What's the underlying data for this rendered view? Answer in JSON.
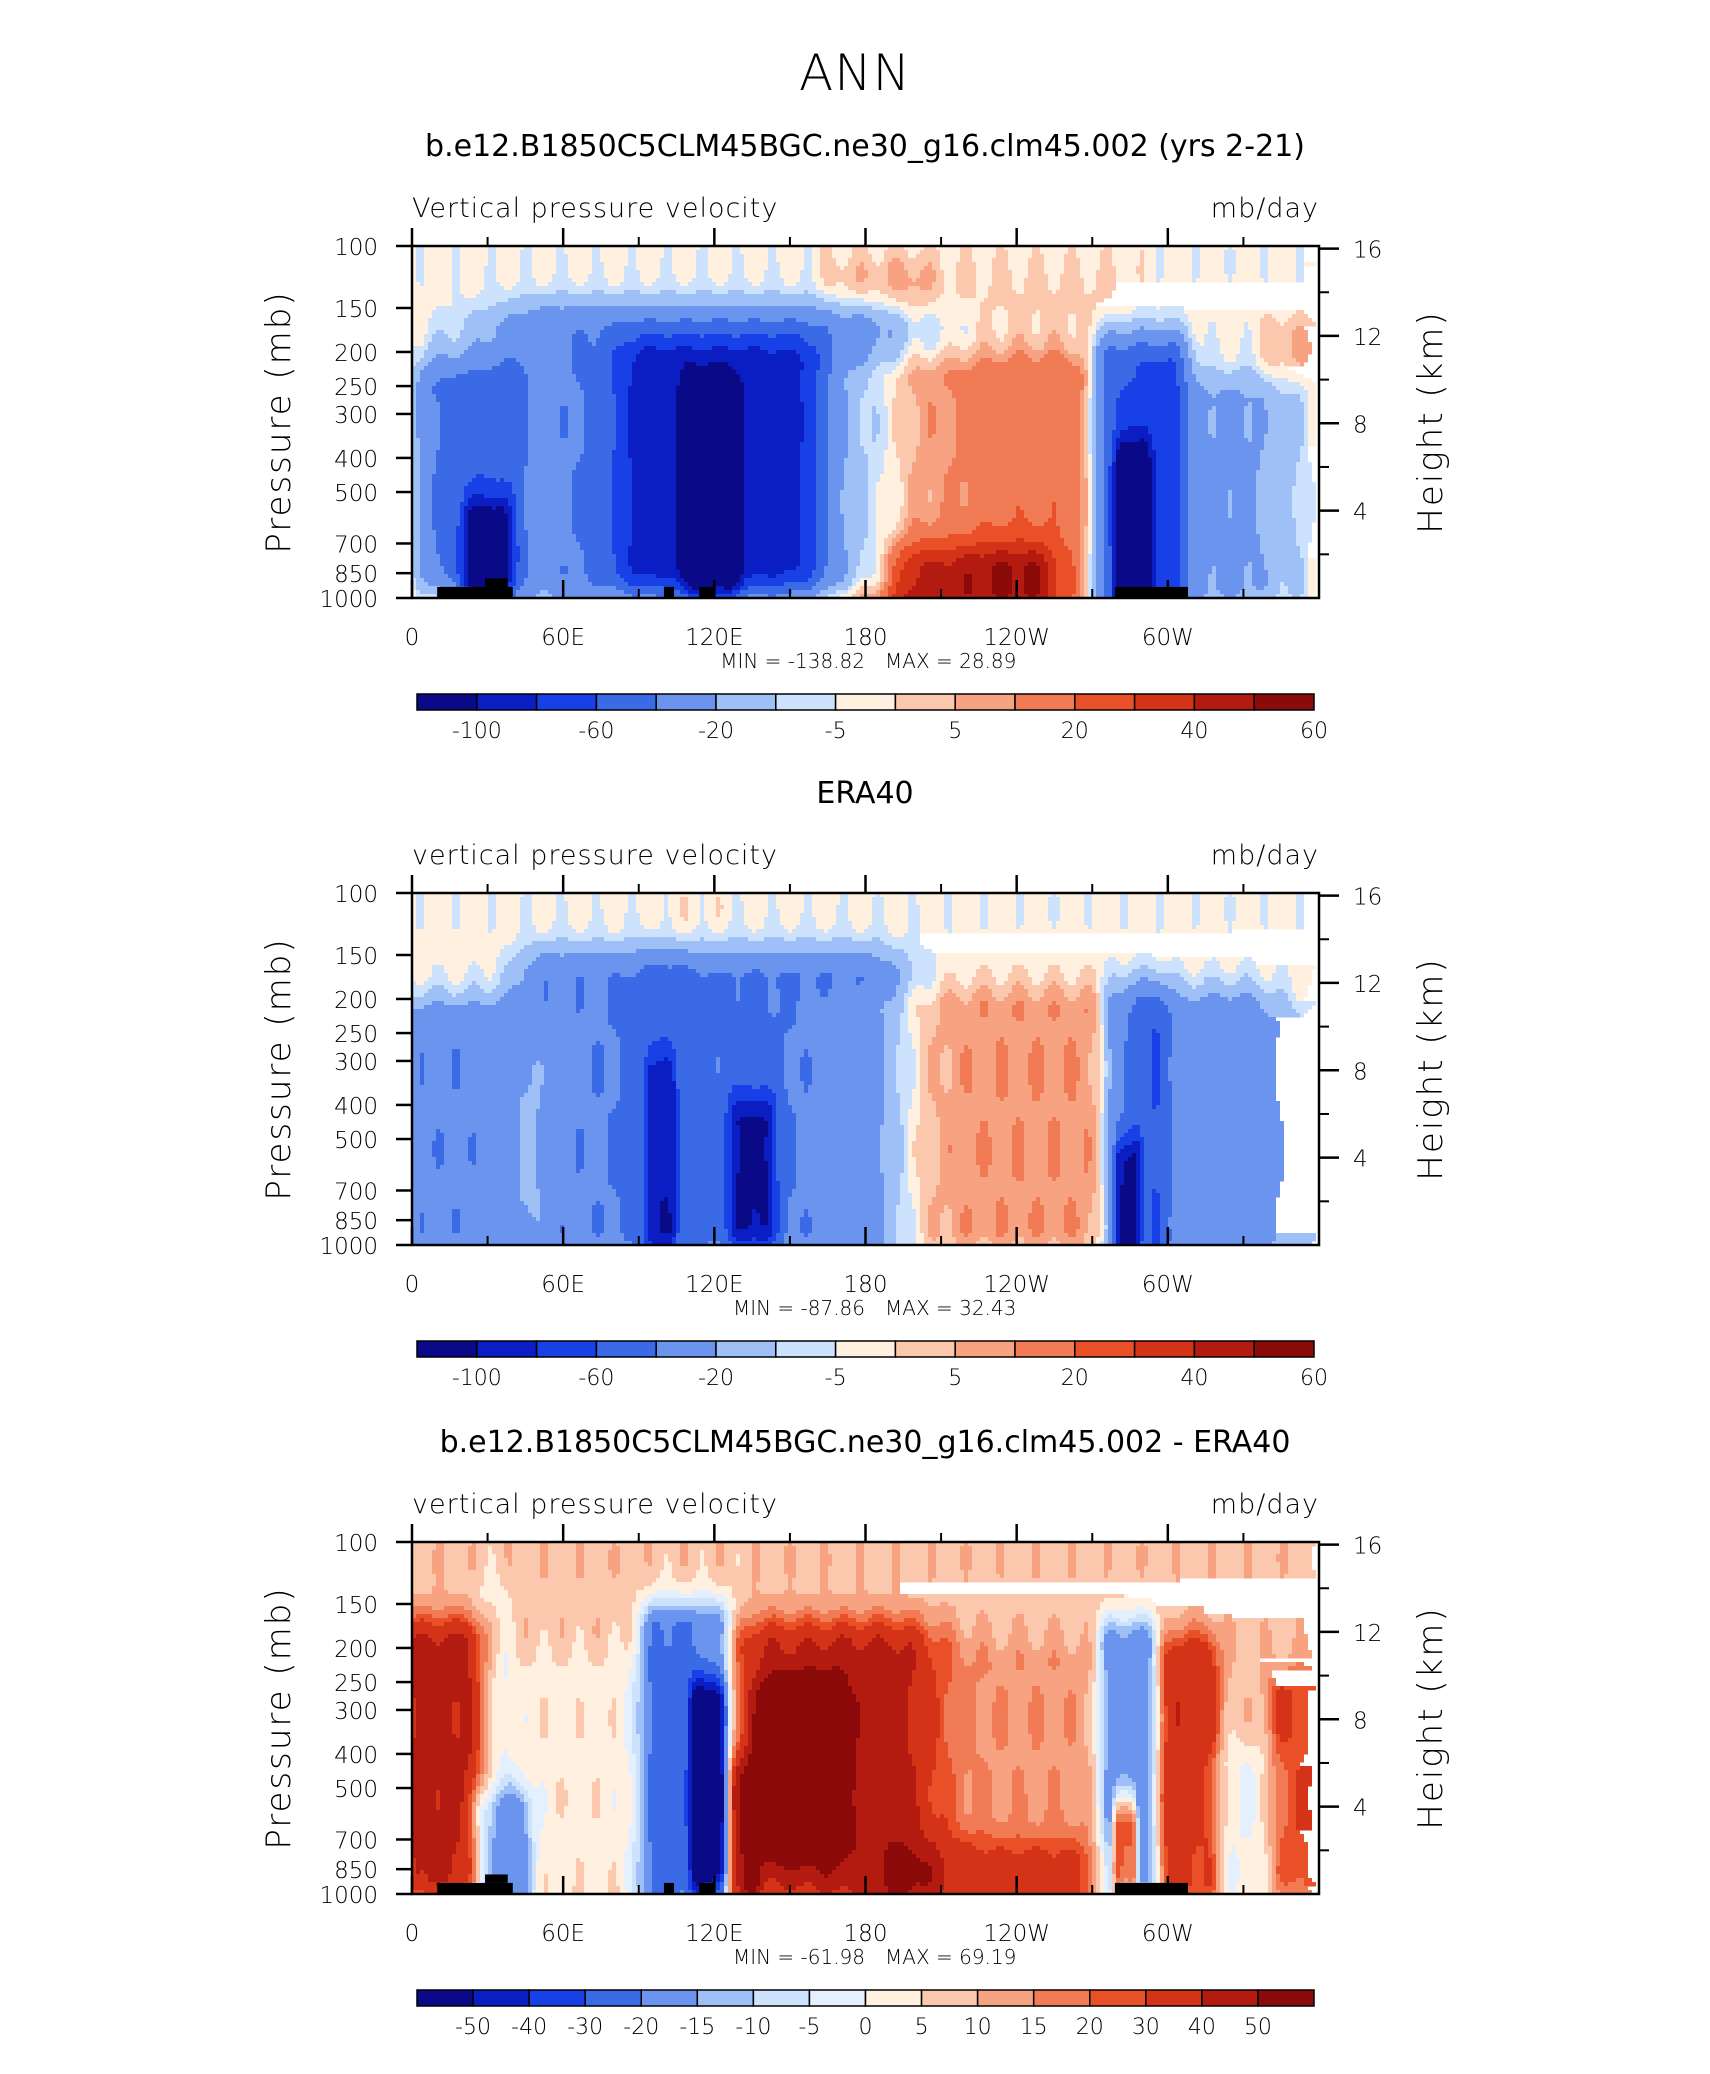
{
  "figure": {
    "title": "ANN"
  },
  "chart_data": [
    {
      "type": "heatmap",
      "title": "b.e12.B1850C5CLM45BGC.ne30_g16.clm45.002 (yrs 2-21)",
      "variable_label": "Vertical pressure velocity",
      "units_label": "mb/day",
      "ylabel": "Pressure (mb)",
      "y2label": "Height (km)",
      "x_ticks": [
        "0",
        "60E",
        "120E",
        "180",
        "120W",
        "60W"
      ],
      "x_tick_lon": [
        0,
        60,
        120,
        180,
        240,
        300
      ],
      "xlim": [
        0,
        360
      ],
      "y_ticks": [
        "100",
        "150",
        "200",
        "250",
        "300",
        "400",
        "500",
        "700",
        "850",
        "1000"
      ],
      "y_tick_p": [
        100,
        150,
        200,
        250,
        300,
        400,
        500,
        700,
        850,
        1000
      ],
      "ylim": [
        1000,
        100
      ],
      "yscale": "log",
      "y2_ticks": [
        "16",
        "12",
        "8",
        "4"
      ],
      "y2_tick_km": [
        16,
        12,
        8,
        4
      ],
      "min_label": "MIN = -138.82",
      "max_label": "MAX = 28.89",
      "colorbar_labels": [
        "-100",
        "-60",
        "-20",
        "-5",
        "5",
        "20",
        "40",
        "60"
      ],
      "colorbar_levels": [
        -100,
        -80,
        -60,
        -40,
        -20,
        -10,
        -5,
        0,
        5,
        10,
        20,
        30,
        40,
        50,
        60
      ],
      "colorbar_colors": [
        "#0a0a88",
        "#0b1ec4",
        "#1740e6",
        "#3a6ae6",
        "#6a94ee",
        "#9fbff7",
        "#cde2fd",
        "#fff0e0",
        "#fcc8ad",
        "#f7a381",
        "#f07b55",
        "#ea5028",
        "#d43318",
        "#b31a10",
        "#8c0a0a"
      ],
      "land": [
        [
          10,
          40,
          1000,
          930
        ],
        [
          29,
          38,
          930,
          880
        ],
        [
          100,
          104,
          1000,
          930
        ],
        [
          114,
          120,
          1000,
          930
        ],
        [
          279,
          308,
          1000,
          930
        ]
      ],
      "features": [
        [
          10,
          38,
          260,
          780,
          -40,
          9
        ],
        [
          25,
          35,
          650,
          950,
          -80,
          5
        ],
        [
          38,
          50,
          280,
          800,
          12,
          6
        ],
        [
          60,
          175,
          180,
          840,
          -35,
          32
        ],
        [
          95,
          150,
          220,
          780,
          -55,
          16
        ],
        [
          112,
          125,
          300,
          800,
          -75,
          5
        ],
        [
          172,
          198,
          130,
          950,
          8,
          10
        ],
        [
          180,
          270,
          250,
          930,
          20,
          28
        ],
        [
          200,
          245,
          850,
          960,
          35,
          12
        ],
        [
          200,
          270,
          130,
          200,
          4,
          16
        ],
        [
          278,
          300,
          220,
          950,
          -60,
          8
        ],
        [
          282,
          290,
          450,
          960,
          -100,
          3
        ],
        [
          290,
          345,
          280,
          900,
          -20,
          16
        ],
        [
          345,
          360,
          200,
          900,
          10,
          8
        ],
        [
          0,
          8,
          300,
          950,
          6,
          5
        ]
      ],
      "background": -3
    },
    {
      "type": "heatmap",
      "title": "ERA40",
      "variable_label": "vertical pressure velocity",
      "units_label": "mb/day",
      "ylabel": "Pressure (mb)",
      "y2label": "Height (km)",
      "x_ticks": [
        "0",
        "60E",
        "120E",
        "180",
        "120W",
        "60W"
      ],
      "x_tick_lon": [
        0,
        60,
        120,
        180,
        240,
        300
      ],
      "xlim": [
        0,
        360
      ],
      "y_ticks": [
        "100",
        "150",
        "200",
        "250",
        "300",
        "400",
        "500",
        "700",
        "850",
        "1000"
      ],
      "y_tick_p": [
        100,
        150,
        200,
        250,
        300,
        400,
        500,
        700,
        850,
        1000
      ],
      "ylim": [
        1000,
        100
      ],
      "yscale": "log",
      "y2_ticks": [
        "16",
        "12",
        "8",
        "4"
      ],
      "y2_tick_km": [
        16,
        12,
        8,
        4
      ],
      "min_label": "MIN = -87.86",
      "max_label": "MAX = 32.43",
      "colorbar_labels": [
        "-100",
        "-60",
        "-20",
        "-5",
        "5",
        "20",
        "40",
        "60"
      ],
      "colorbar_levels": [
        -100,
        -80,
        -60,
        -40,
        -20,
        -10,
        -5,
        0,
        5,
        10,
        20,
        30,
        40,
        50,
        60
      ],
      "colorbar_colors": [
        "#0a0a88",
        "#0b1ec4",
        "#1740e6",
        "#3a6ae6",
        "#6a94ee",
        "#9fbff7",
        "#cde2fd",
        "#fff0e0",
        "#fcc8ad",
        "#f7a381",
        "#f07b55",
        "#ea5028",
        "#d43318",
        "#b31a10",
        "#8c0a0a"
      ],
      "land": [],
      "features": [
        [
          5,
          35,
          250,
          900,
          -35,
          9
        ],
        [
          35,
          50,
          320,
          800,
          16,
          6
        ],
        [
          55,
          95,
          180,
          900,
          -35,
          14
        ],
        [
          95,
          102,
          350,
          900,
          -45,
          3
        ],
        [
          118,
          175,
          180,
          900,
          -40,
          22
        ],
        [
          130,
          140,
          450,
          850,
          -60,
          5
        ],
        [
          185,
          275,
          220,
          880,
          12,
          30
        ],
        [
          280,
          295,
          220,
          950,
          -35,
          6
        ],
        [
          281,
          287,
          600,
          960,
          -65,
          2
        ],
        [
          295,
          330,
          230,
          930,
          -30,
          12
        ],
        [
          345,
          360,
          250,
          900,
          -10,
          6
        ],
        [
          102,
          118,
          130,
          350,
          2,
          6
        ]
      ],
      "background": -3
    },
    {
      "type": "heatmap",
      "title": "b.e12.B1850C5CLM45BGC.ne30_g16.clm45.002 - ERA40",
      "variable_label": "vertical pressure velocity",
      "units_label": "mb/day",
      "ylabel": "Pressure (mb)",
      "y2label": "Height (km)",
      "x_ticks": [
        "0",
        "60E",
        "120E",
        "180",
        "120W",
        "60W"
      ],
      "x_tick_lon": [
        0,
        60,
        120,
        180,
        240,
        300
      ],
      "xlim": [
        0,
        360
      ],
      "y_ticks": [
        "100",
        "150",
        "200",
        "250",
        "300",
        "400",
        "500",
        "700",
        "850",
        "1000"
      ],
      "y_tick_p": [
        100,
        150,
        200,
        250,
        300,
        400,
        500,
        700,
        850,
        1000
      ],
      "ylim": [
        1000,
        100
      ],
      "yscale": "log",
      "y2_ticks": [
        "16",
        "12",
        "8",
        "4"
      ],
      "y2_tick_km": [
        16,
        12,
        8,
        4
      ],
      "min_label": "MIN = -61.98",
      "max_label": "MAX = 69.19",
      "colorbar_labels": [
        "-50",
        "-40",
        "-30",
        "-20",
        "-15",
        "-10",
        "-5",
        "0",
        "5",
        "10",
        "15",
        "20",
        "30",
        "40",
        "50"
      ],
      "colorbar_levels": [
        -60,
        -50,
        -40,
        -30,
        -20,
        -15,
        -10,
        -5,
        0,
        5,
        10,
        15,
        20,
        30,
        40,
        50
      ],
      "colorbar_colors": [
        "#0a0a88",
        "#0b1ec4",
        "#1740e6",
        "#3a6ae6",
        "#6a94ee",
        "#9fbff7",
        "#cde2fd",
        "#e4f0fe",
        "#fff0e0",
        "#fcc8ad",
        "#f7a381",
        "#f07b55",
        "#ea5028",
        "#d43318",
        "#b31a10",
        "#8c0a0a"
      ],
      "land": [
        [
          10,
          40,
          1000,
          930
        ],
        [
          29,
          38,
          930,
          880
        ],
        [
          100,
          104,
          1000,
          930
        ],
        [
          114,
          120,
          1000,
          930
        ],
        [
          279,
          308,
          1000,
          930
        ]
      ],
      "features": [
        [
          3,
          22,
          200,
          850,
          30,
          8
        ],
        [
          28,
          42,
          600,
          950,
          -25,
          6
        ],
        [
          45,
          90,
          250,
          900,
          -5,
          20
        ],
        [
          98,
          120,
          180,
          950,
          -35,
          8
        ],
        [
          113,
          122,
          300,
          800,
          -50,
          3
        ],
        [
          128,
          135,
          500,
          900,
          22,
          3
        ],
        [
          140,
          190,
          200,
          900,
          25,
          20
        ],
        [
          145,
          165,
          300,
          650,
          40,
          8
        ],
        [
          180,
          255,
          230,
          900,
          6,
          26
        ],
        [
          200,
          260,
          850,
          960,
          15,
          16
        ],
        [
          278,
          292,
          200,
          900,
          -30,
          6
        ],
        [
          280,
          286,
          650,
          850,
          40,
          2
        ],
        [
          300,
          315,
          220,
          900,
          25,
          6
        ],
        [
          345,
          360,
          280,
          850,
          18,
          6
        ],
        [
          315,
          340,
          450,
          900,
          -8,
          10
        ],
        [
          28,
          36,
          150,
          400,
          -5,
          4
        ]
      ],
      "background": 3
    }
  ]
}
